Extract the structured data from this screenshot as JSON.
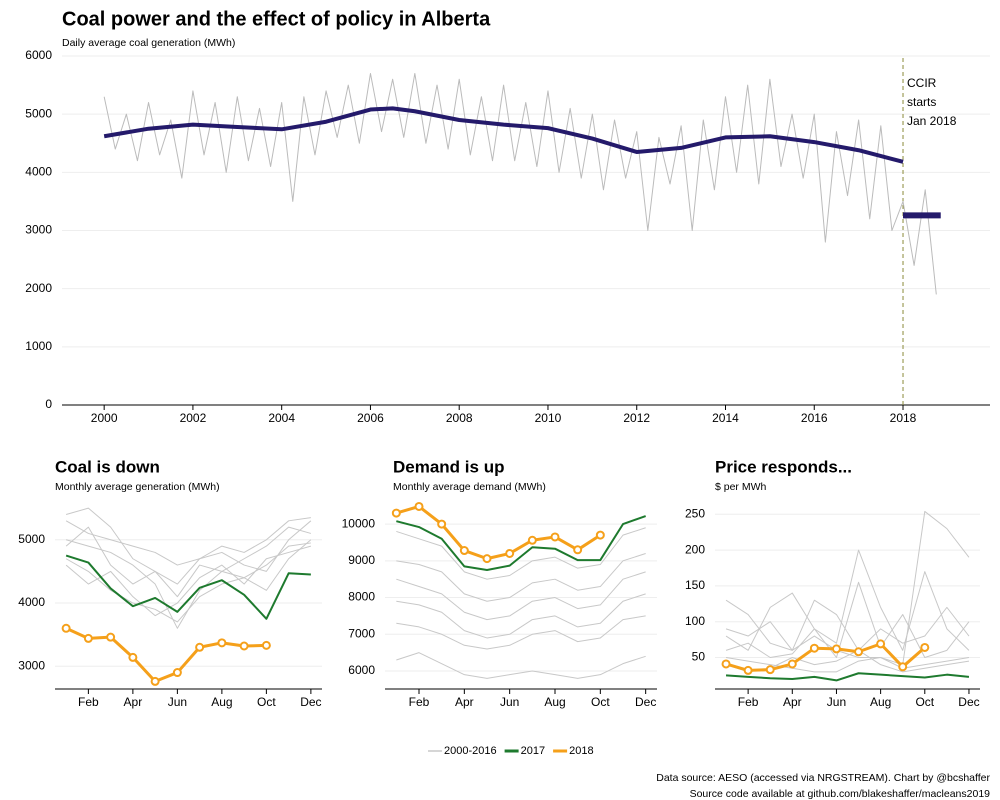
{
  "chart_data": [
    {
      "type": "line",
      "title": "Coal power and the effect of policy in Alberta",
      "subtitle": "Daily average coal generation (MWh)",
      "xlim": [
        1999.05,
        2019.96
      ],
      "ylim": [
        0,
        6000
      ],
      "xticks": [
        2000,
        2002,
        2004,
        2006,
        2008,
        2010,
        2012,
        2014,
        2016,
        2018
      ],
      "yticks": [
        0,
        1000,
        2000,
        3000,
        4000,
        5000,
        6000
      ],
      "grid": true,
      "annotation": {
        "x": 2018,
        "lines": [
          "CCIR",
          "starts",
          "Jan 2018"
        ],
        "color": "#8a8a3a"
      },
      "series": [
        {
          "color": "#bbbbbb",
          "width": 1,
          "x": [
            2000,
            2000.25,
            2000.5,
            2000.75,
            2001,
            2001.25,
            2001.5,
            2001.75,
            2002,
            2002.25,
            2002.5,
            2002.75,
            2003,
            2003.25,
            2003.5,
            2003.75,
            2004,
            2004.25,
            2004.5,
            2004.75,
            2005,
            2005.25,
            2005.5,
            2005.75,
            2006,
            2006.25,
            2006.5,
            2006.75,
            2007,
            2007.25,
            2007.5,
            2007.75,
            2008,
            2008.25,
            2008.5,
            2008.75,
            2009,
            2009.25,
            2009.5,
            2009.75,
            2010,
            2010.25,
            2010.5,
            2010.75,
            2011,
            2011.25,
            2011.5,
            2011.75,
            2012,
            2012.25,
            2012.5,
            2012.75,
            2013,
            2013.25,
            2013.5,
            2013.75,
            2014,
            2014.25,
            2014.5,
            2014.75,
            2015,
            2015.25,
            2015.5,
            2015.75,
            2016,
            2016.25,
            2016.5,
            2016.75,
            2017,
            2017.25,
            2017.5,
            2017.75,
            2018,
            2018.25,
            2018.5,
            2018.75
          ],
          "values": [
            5300,
            4400,
            5000,
            4200,
            5200,
            4300,
            4900,
            3900,
            5400,
            4300,
            5200,
            4000,
            5300,
            4200,
            5100,
            4100,
            5200,
            3500,
            5300,
            4300,
            5400,
            4600,
            5500,
            4500,
            5700,
            4700,
            5600,
            4600,
            5700,
            4500,
            5500,
            4400,
            5600,
            4300,
            5300,
            4200,
            5500,
            4200,
            5200,
            4100,
            5400,
            4000,
            5100,
            3900,
            5000,
            3700,
            4900,
            3900,
            4700,
            3000,
            4600,
            3800,
            4800,
            3000,
            4900,
            3700,
            5300,
            4000,
            5500,
            3800,
            5600,
            4100,
            5000,
            3900,
            5000,
            2800,
            4700,
            3600,
            4900,
            3200,
            4800,
            3000,
            3500,
            2400,
            3700,
            1900
          ]
        },
        {
          "color": "#241a6b",
          "width": 4,
          "x": [
            2000,
            2001,
            2002,
            2003,
            2004,
            2005,
            2006,
            2006.5,
            2007,
            2008,
            2009,
            2010,
            2011,
            2012,
            2013,
            2014,
            2015,
            2016,
            2017,
            2018
          ],
          "values": [
            4620,
            4750,
            4820,
            4780,
            4740,
            4870,
            5080,
            5100,
            5050,
            4900,
            4820,
            4760,
            4580,
            4350,
            4420,
            4600,
            4620,
            4520,
            4380,
            4180
          ]
        },
        {
          "color": "#241a6b",
          "width": 6,
          "x": [
            2018,
            2018.85
          ],
          "values": [
            3260,
            3260
          ]
        }
      ]
    },
    {
      "type": "line",
      "title": "Coal is down",
      "subtitle": "Monthly average generation (MWh)",
      "xlim": [
        0.5,
        12.5
      ],
      "ylim": [
        2640,
        5550
      ],
      "x": [
        1,
        2,
        3,
        4,
        5,
        6,
        7,
        8,
        9,
        10,
        11,
        12
      ],
      "xticks": [
        {
          "value": 2,
          "label": "Feb"
        },
        {
          "value": 4,
          "label": "Apr"
        },
        {
          "value": 6,
          "label": "Jun"
        },
        {
          "value": 8,
          "label": "Aug"
        },
        {
          "value": 10,
          "label": "Oct"
        },
        {
          "value": 12,
          "label": "Dec"
        }
      ],
      "yticks": [
        3000,
        4000,
        5000
      ],
      "grid": true,
      "series": [
        {
          "color": "#c8c8c8",
          "width": 1,
          "values": [
            5400,
            5500,
            5200,
            4700,
            4500,
            4300,
            4700,
            4800,
            4600,
            4500,
            5000,
            5300
          ]
        },
        {
          "color": "#c8c8c8",
          "width": 1,
          "values": [
            5000,
            4900,
            4800,
            4600,
            4300,
            3600,
            4200,
            4500,
            4700,
            4900,
            5200,
            5100
          ]
        },
        {
          "color": "#c8c8c8",
          "width": 1,
          "values": [
            4700,
            4500,
            4200,
            4000,
            3900,
            3700,
            4100,
            4300,
            4400,
            4600,
            4900,
            4950
          ]
        },
        {
          "color": "#c8c8c8",
          "width": 1,
          "values": [
            5300,
            5100,
            5000,
            4900,
            4800,
            4600,
            4700,
            4900,
            4800,
            5000,
            5300,
            5350
          ]
        },
        {
          "color": "#c8c8c8",
          "width": 1,
          "values": [
            4900,
            5200,
            4600,
            4300,
            4500,
            4100,
            4600,
            4500,
            4400,
            4200,
            4700,
            5000
          ]
        },
        {
          "color": "#c8c8c8",
          "width": 1,
          "values": [
            4600,
            4300,
            4500,
            4100,
            3800,
            4000,
            4400,
            4600,
            4300,
            4700,
            4800,
            4900
          ]
        },
        {
          "color": "#1e7a2e",
          "width": 2,
          "values": [
            4750,
            4640,
            4230,
            3950,
            4080,
            3860,
            4240,
            4360,
            4130,
            3750,
            4470,
            4450
          ]
        },
        {
          "color": "#f5a01a",
          "width": 3,
          "marker": true,
          "values": [
            3600,
            3440,
            3460,
            3140,
            2760,
            2900,
            3300,
            3370,
            3320,
            3330,
            null,
            null
          ]
        }
      ]
    },
    {
      "type": "line",
      "title": "Demand is up",
      "subtitle": "Monthly average demand (MWh)",
      "xlim": [
        0.5,
        12.5
      ],
      "ylim": [
        5510,
        10520
      ],
      "x": [
        1,
        2,
        3,
        4,
        5,
        6,
        7,
        8,
        9,
        10,
        11,
        12
      ],
      "xticks": [
        {
          "value": 2,
          "label": "Feb"
        },
        {
          "value": 4,
          "label": "Apr"
        },
        {
          "value": 6,
          "label": "Jun"
        },
        {
          "value": 8,
          "label": "Aug"
        },
        {
          "value": 10,
          "label": "Oct"
        },
        {
          "value": 12,
          "label": "Dec"
        }
      ],
      "yticks": [
        6000,
        7000,
        8000,
        9000,
        10000
      ],
      "grid": true,
      "series": [
        {
          "color": "#c8c8c8",
          "width": 1,
          "values": [
            9800,
            9600,
            9400,
            8700,
            8500,
            8600,
            9000,
            9100,
            8800,
            8900,
            9700,
            9900
          ]
        },
        {
          "color": "#c8c8c8",
          "width": 1,
          "values": [
            9000,
            8900,
            8700,
            8100,
            7900,
            8000,
            8400,
            8500,
            8200,
            8300,
            9000,
            9200
          ]
        },
        {
          "color": "#c8c8c8",
          "width": 1,
          "values": [
            8500,
            8300,
            8100,
            7600,
            7400,
            7500,
            7900,
            8000,
            7700,
            7800,
            8500,
            8700
          ]
        },
        {
          "color": "#c8c8c8",
          "width": 1,
          "values": [
            7900,
            7800,
            7600,
            7100,
            6900,
            7000,
            7400,
            7500,
            7200,
            7300,
            7900,
            8100
          ]
        },
        {
          "color": "#c8c8c8",
          "width": 1,
          "values": [
            7300,
            7200,
            7000,
            6700,
            6600,
            6700,
            7000,
            7100,
            6800,
            6900,
            7400,
            7500
          ]
        },
        {
          "color": "#c8c8c8",
          "width": 1,
          "values": [
            6300,
            6500,
            6200,
            5900,
            5800,
            5900,
            6000,
            5900,
            5800,
            5900,
            6200,
            6400
          ]
        },
        {
          "color": "#1e7a2e",
          "width": 2,
          "values": [
            10080,
            9920,
            9600,
            8850,
            8750,
            8870,
            9370,
            9330,
            9020,
            9020,
            10000,
            10220
          ]
        },
        {
          "color": "#f5a01a",
          "width": 3,
          "marker": true,
          "values": [
            10300,
            10480,
            10000,
            9280,
            9060,
            9200,
            9560,
            9650,
            9300,
            9700,
            null,
            null
          ]
        }
      ]
    },
    {
      "type": "line",
      "title": "Price responds...",
      "subtitle": "$ per MWh",
      "xlim": [
        0.5,
        12.5
      ],
      "ylim": [
        6,
        263
      ],
      "x": [
        1,
        2,
        3,
        4,
        5,
        6,
        7,
        8,
        9,
        10,
        11,
        12
      ],
      "xticks": [
        {
          "value": 2,
          "label": "Feb"
        },
        {
          "value": 4,
          "label": "Apr"
        },
        {
          "value": 6,
          "label": "Jun"
        },
        {
          "value": 8,
          "label": "Aug"
        },
        {
          "value": 10,
          "label": "Oct"
        },
        {
          "value": 12,
          "label": "Dec"
        }
      ],
      "yticks": [
        50,
        100,
        150,
        200,
        250
      ],
      "grid": true,
      "series": [
        {
          "color": "#c8c8c8",
          "width": 1,
          "values": [
            130,
            110,
            70,
            60,
            80,
            60,
            50,
            50,
            40,
            254,
            230,
            190
          ]
        },
        {
          "color": "#c8c8c8",
          "width": 1,
          "values": [
            80,
            60,
            120,
            140,
            90,
            70,
            200,
            120,
            60,
            170,
            90,
            60
          ]
        },
        {
          "color": "#c8c8c8",
          "width": 1,
          "values": [
            60,
            70,
            50,
            55,
            90,
            50,
            155,
            65,
            110,
            50,
            60,
            100
          ]
        },
        {
          "color": "#c8c8c8",
          "width": 1,
          "values": [
            40,
            30,
            35,
            50,
            40,
            45,
            60,
            40,
            30,
            35,
            40,
            45
          ]
        },
        {
          "color": "#c8c8c8",
          "width": 1,
          "values": [
            90,
            80,
            100,
            60,
            130,
            110,
            60,
            90,
            70,
            80,
            120,
            80
          ]
        },
        {
          "color": "#c8c8c8",
          "width": 1,
          "values": [
            50,
            45,
            40,
            35,
            30,
            30,
            45,
            50,
            35,
            40,
            45,
            50
          ]
        },
        {
          "color": "#1e7a2e",
          "width": 2,
          "values": [
            25,
            23,
            21,
            20,
            23,
            18,
            28,
            26,
            24,
            22,
            26,
            23
          ]
        },
        {
          "color": "#f5a01a",
          "width": 3,
          "marker": true,
          "values": [
            41,
            32,
            33,
            41,
            63,
            62,
            58,
            69,
            37,
            64,
            null,
            null
          ]
        }
      ]
    }
  ],
  "legend": {
    "items": [
      {
        "name": "2000-2016",
        "color": "#c8c8c8"
      },
      {
        "name": "2017",
        "color": "#1e7a2e"
      },
      {
        "name": "2018",
        "color": "#f5a01a"
      }
    ]
  },
  "footer": [
    "Data source: AESO (accessed via NRGSTREAM). Chart by @bcshaffer",
    "Source code available at github.com/blakeshaffer/macleans2019"
  ]
}
